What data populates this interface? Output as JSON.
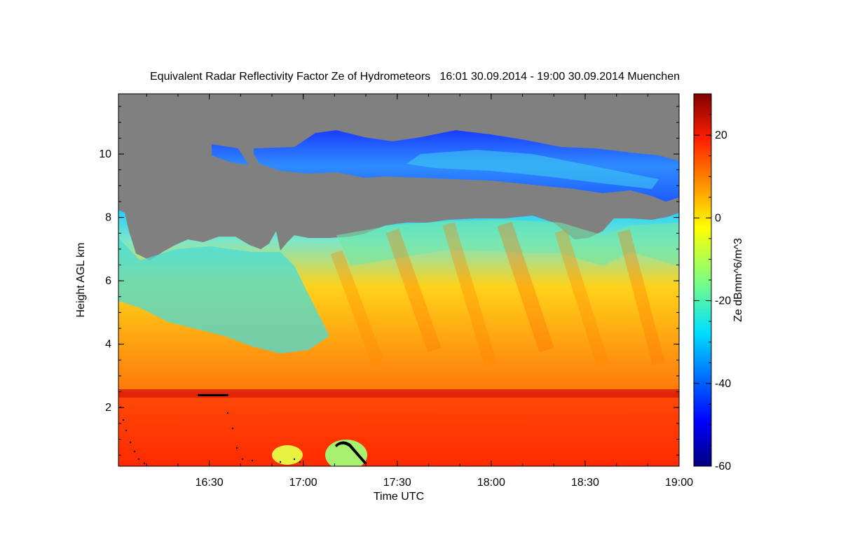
{
  "chart_data": {
    "type": "heatmap",
    "title": "Equivalent Radar Reflectivity Factor Ze of Hydrometeors   16:01 30.09.2014 - 19:00 30.09.2014 Muenchen",
    "xlabel": "Time UTC",
    "ylabel": "Height AGL km",
    "x_range_utc": [
      "16:01",
      "19:00"
    ],
    "x_ticks": [
      "16:30",
      "17:00",
      "17:30",
      "18:00",
      "18:30",
      "19:00"
    ],
    "y_range_km": [
      0.15,
      11.9
    ],
    "y_ticks": [
      "2",
      "4",
      "6",
      "8",
      "10"
    ],
    "colorbar": {
      "label": "Ze dBmm^6/m^3",
      "range": [
        -60,
        30
      ],
      "ticks": [
        "20",
        "0",
        "-20",
        "-40",
        "-60"
      ],
      "colormap": "jet"
    },
    "no_signal_color": "#808080",
    "features": {
      "melting_layer_km": 2.6,
      "main_cloud_top_km": [
        7.0,
        8.1
      ],
      "upper_cirrus_layer_km": [
        9.0,
        10.8
      ],
      "near_surface_max_dBZ": 25
    }
  }
}
